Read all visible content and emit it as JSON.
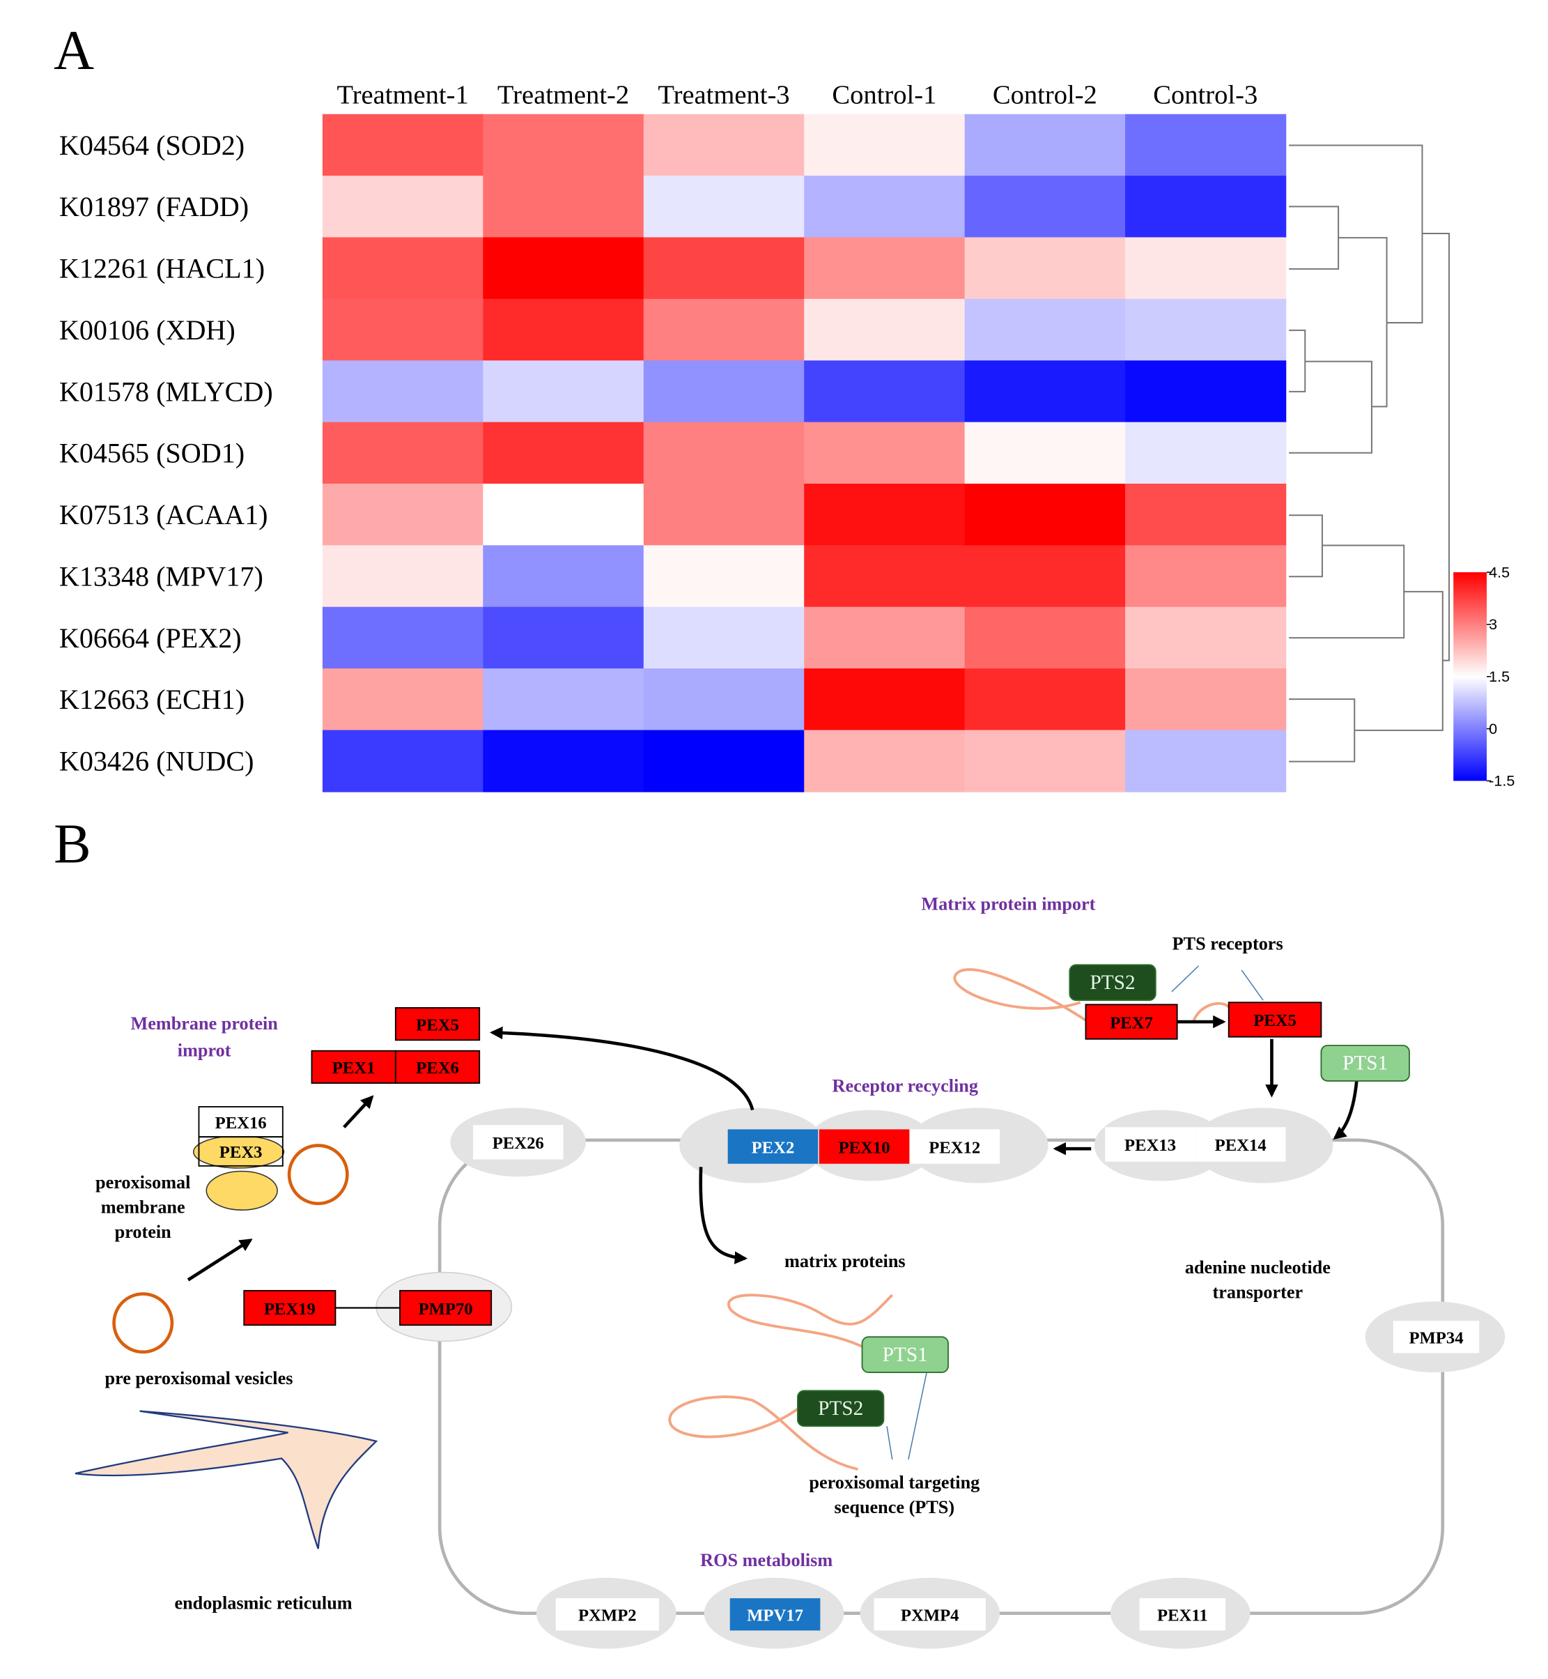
{
  "panel_labels": [
    "A",
    "B"
  ],
  "chart_data": {
    "type": "heatmap",
    "x": [
      "Treatment-1",
      "Treatment-2",
      "Treatment-3",
      "Control-1",
      "Control-2",
      "Control-3"
    ],
    "y": [
      "K04564 (SOD2)",
      "K01897 (FADD)",
      "K12261 (HACL1)",
      "K00106 (XDH)",
      "K01578 (MLYCD)",
      "K04565 (SOD1)",
      "K07513 (ACAA1)",
      "K13348 (MPV17)",
      "K06664 (PEX2)",
      "K12663 (ECH1)",
      "K03426 (NUDC)"
    ],
    "values": [
      [
        3.5,
        3.2,
        2.3,
        1.7,
        0.5,
        -0.2
      ],
      [
        2.0,
        3.2,
        1.2,
        0.6,
        -0.3,
        -1.0
      ],
      [
        3.5,
        4.5,
        3.7,
        2.8,
        2.1,
        1.8
      ],
      [
        3.4,
        4.0,
        3.0,
        1.8,
        0.8,
        0.9
      ],
      [
        0.6,
        1.0,
        0.2,
        -0.7,
        -1.2,
        -1.4
      ],
      [
        3.4,
        3.9,
        3.0,
        2.8,
        1.6,
        1.2
      ],
      [
        2.5,
        1.5,
        3.0,
        4.3,
        4.5,
        3.6
      ],
      [
        1.8,
        0.2,
        1.6,
        4.0,
        4.0,
        2.9
      ],
      [
        -0.2,
        -0.6,
        1.1,
        2.7,
        3.3,
        2.2
      ],
      [
        2.6,
        0.6,
        0.5,
        4.4,
        4.0,
        2.6
      ],
      [
        -0.8,
        -1.4,
        -1.5,
        2.4,
        2.3,
        0.7
      ]
    ],
    "colorscale": [
      "#0000ff",
      "#ffffff",
      "#ff0000"
    ],
    "clim": [
      -1.5,
      4.5
    ],
    "cticks": [
      4.5,
      3,
      1.5,
      0,
      -1.5
    ]
  },
  "diagram": {
    "headings": [
      [
        "Matrix protein import"
      ],
      [
        "Membrane protein",
        "improt"
      ],
      [
        "Receptor recycling"
      ],
      [
        "ROS metabolism"
      ]
    ],
    "heading_color": "#7030a0",
    "notes": [
      [
        "PTS receptors"
      ],
      [
        "peroxisomal",
        "membrane",
        "protein"
      ],
      [
        "pre peroxisomal vesicles"
      ],
      [
        "endoplasmic reticulum"
      ],
      [
        "matrix proteins"
      ],
      [
        "adenine nucleotide",
        "transporter"
      ],
      [
        "peroxisomal targeting",
        "sequence (PTS)"
      ]
    ],
    "boxes": [
      {
        "text": "PTS2",
        "fill": "#1e4d1e",
        "text_color": "#e8f5e8"
      },
      {
        "text": "PEX7",
        "fill": "#ff0000",
        "text_color": "#000000"
      },
      {
        "text": "PEX5",
        "fill": "#ff0000",
        "text_color": "#000000"
      },
      {
        "text": "PTS1",
        "fill": "#8fd18f",
        "text_color": "#ffffff"
      },
      {
        "text": "PEX5",
        "fill": "#ff0000",
        "text_color": "#000000"
      },
      {
        "text": "PEX1",
        "fill": "#ff0000",
        "text_color": "#000000"
      },
      {
        "text": "PEX6",
        "fill": "#ff0000",
        "text_color": "#000000"
      },
      {
        "text": "PEX16",
        "fill": "#ffffff",
        "text_color": "#000000"
      },
      {
        "text": "PEX3",
        "fill": "none",
        "text_color": "#000000"
      },
      {
        "text": "PEX19",
        "fill": "#ff0000",
        "text_color": "#000000"
      },
      {
        "text": "PMP70",
        "fill": "#ff0000",
        "text_color": "#000000"
      },
      {
        "text": "PEX26",
        "fill": "#ffffff",
        "text_color": "#000000"
      },
      {
        "text": "PEX2",
        "fill": "#1a75c4",
        "text_color": "#ffffff"
      },
      {
        "text": "PEX10",
        "fill": "#ff0000",
        "text_color": "#000000"
      },
      {
        "text": "PEX12",
        "fill": "#ffffff",
        "text_color": "#000000"
      },
      {
        "text": "PEX13",
        "fill": "#ffffff",
        "text_color": "#000000"
      },
      {
        "text": "PEX14",
        "fill": "#ffffff",
        "text_color": "#000000"
      },
      {
        "text": "PTS1",
        "fill": "#8fd18f",
        "text_color": "#ffffff"
      },
      {
        "text": "PTS2",
        "fill": "#1e4d1e",
        "text_color": "#e8f5e8"
      },
      {
        "text": "PMP34",
        "fill": "#ffffff",
        "text_color": "#000000"
      },
      {
        "text": "PXMP2",
        "fill": "#ffffff",
        "text_color": "#000000"
      },
      {
        "text": "MPV17",
        "fill": "#1a75c4",
        "text_color": "#ffffff"
      },
      {
        "text": "PXMP4",
        "fill": "#ffffff",
        "text_color": "#000000"
      },
      {
        "text": "PEX11",
        "fill": "#ffffff",
        "text_color": "#000000"
      }
    ]
  }
}
